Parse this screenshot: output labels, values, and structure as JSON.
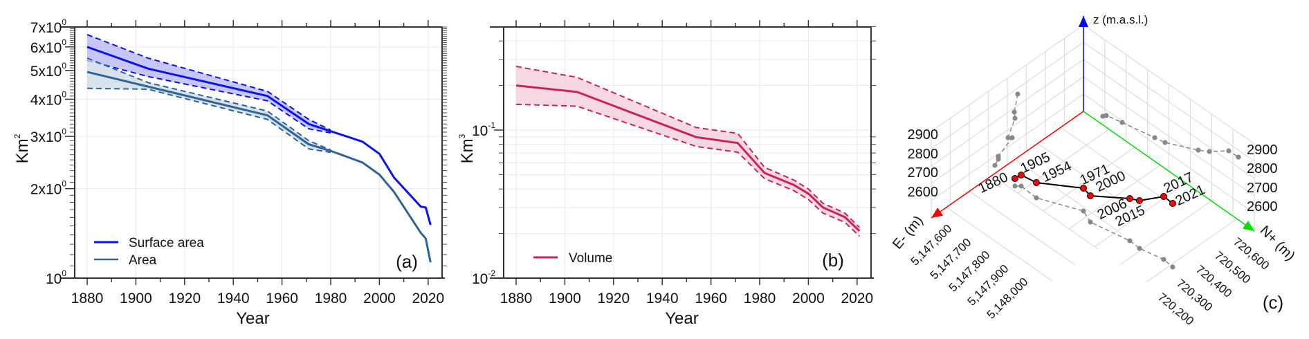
{
  "chart_data": [
    {
      "type": "line",
      "panel_label": "(a)",
      "xlabel": "Year",
      "ylabel": {
        "base": "Km",
        "exp": "2"
      },
      "xlim": [
        1875,
        2026
      ],
      "ylim": [
        1,
        7
      ],
      "yscale": "log",
      "grid": true,
      "legend": "bottom-left",
      "xticks": [
        "1880",
        "1900",
        "1920",
        "1940",
        "1960",
        "1980",
        "2000",
        "2020"
      ],
      "yticks": [
        {
          "value": 1,
          "base": "10",
          "exp": "0"
        },
        {
          "value": 2,
          "base": "2x10",
          "exp": "0"
        },
        {
          "value": 3,
          "base": "3x10",
          "exp": "0"
        },
        {
          "value": 4,
          "base": "4x10",
          "exp": "0"
        },
        {
          "value": 5,
          "base": "5x10",
          "exp": "0"
        },
        {
          "value": 6,
          "base": "6x10",
          "exp": "0"
        },
        {
          "value": 7,
          "base": "7x10",
          "exp": "0"
        }
      ],
      "x": [
        1880,
        1905,
        1954,
        1971,
        1980,
        1993,
        2000,
        2006,
        2017,
        2019,
        2021
      ],
      "series": [
        {
          "name": "Surface area",
          "color": "#0a12f2",
          "band_color": "#b3b3f7",
          "values": [
            6.0,
            5.07,
            4.1,
            3.3,
            3.12,
            2.88,
            2.62,
            2.18,
            1.74,
            1.73,
            1.51
          ],
          "band_x": [
            1880,
            1905,
            1954,
            1971,
            1980
          ],
          "upper": [
            6.6,
            5.5,
            4.25,
            3.42,
            3.15
          ],
          "lower": [
            5.4,
            4.77,
            3.95,
            3.18,
            3.08
          ]
        },
        {
          "name": "Area",
          "color": "#2e6494",
          "band_color": "#c9d8e4",
          "values": [
            4.94,
            4.41,
            3.53,
            2.82,
            2.68,
            2.45,
            2.23,
            1.95,
            1.42,
            1.36,
            1.13
          ],
          "band_x": [
            1880,
            1905,
            1954,
            1971,
            1980
          ],
          "upper": [
            5.5,
            4.55,
            3.65,
            2.9,
            2.7
          ],
          "lower": [
            4.35,
            4.32,
            3.42,
            2.72,
            2.65
          ]
        }
      ]
    },
    {
      "type": "line",
      "panel_label": "(b)",
      "xlabel": "Year",
      "ylabel": {
        "base": "Km",
        "exp": "3"
      },
      "xlim": [
        1875,
        2026
      ],
      "ylim": [
        0.01,
        0.5
      ],
      "yscale": "log",
      "grid": true,
      "legend": "bottom-left",
      "xticks": [
        "1880",
        "1900",
        "1920",
        "1940",
        "1960",
        "1980",
        "2000",
        "2020"
      ],
      "yticks": [
        {
          "value": 0.01,
          "base": "10",
          "exp": "-2"
        },
        {
          "value": 0.1,
          "base": "10",
          "exp": "-1"
        }
      ],
      "x": [
        1880,
        1905,
        1954,
        1971,
        1982,
        1994,
        2000,
        2006,
        2015,
        2021
      ],
      "series": [
        {
          "name": "Volume",
          "color": "#c8235a",
          "band_color": "#f1cbd8",
          "values": [
            0.2,
            0.181,
            0.0895,
            0.0818,
            0.0513,
            0.0426,
            0.0372,
            0.03,
            0.0258,
            0.0208
          ],
          "upper": [
            0.269,
            0.227,
            0.104,
            0.095,
            0.056,
            0.046,
            0.04,
            0.032,
            0.0275,
            0.022
          ],
          "lower": [
            0.149,
            0.145,
            0.0775,
            0.0709,
            0.047,
            0.039,
            0.034,
            0.0275,
            0.0238,
            0.0192
          ]
        }
      ]
    },
    {
      "type": "scatter",
      "subtype": "3d-trajectory",
      "panel_label": "(c)",
      "zlabel": "z (m.a.s.l.)",
      "elabel": "E- (m)",
      "nlabel": "N+ (m)",
      "zticks": [
        "2600",
        "2700",
        "2800",
        "2900"
      ],
      "eticks": [
        "5,147,600",
        "5,147,700",
        "5,147,800",
        "5,147,900",
        "5,148,000"
      ],
      "nticks": [
        "720,600",
        "720,500",
        "720,400",
        "720,300",
        "720,200"
      ],
      "point_labels": [
        "1880",
        "1905",
        "1954",
        "1971",
        "2000",
        "2006",
        "2015",
        "2017",
        "2021"
      ],
      "colors": {
        "points": "#ff0000",
        "path": "#000000",
        "projections": "#888888",
        "z_axis": "#0000ff",
        "e_axis": "#ff0000",
        "n_axis": "#00dd00"
      }
    }
  ]
}
